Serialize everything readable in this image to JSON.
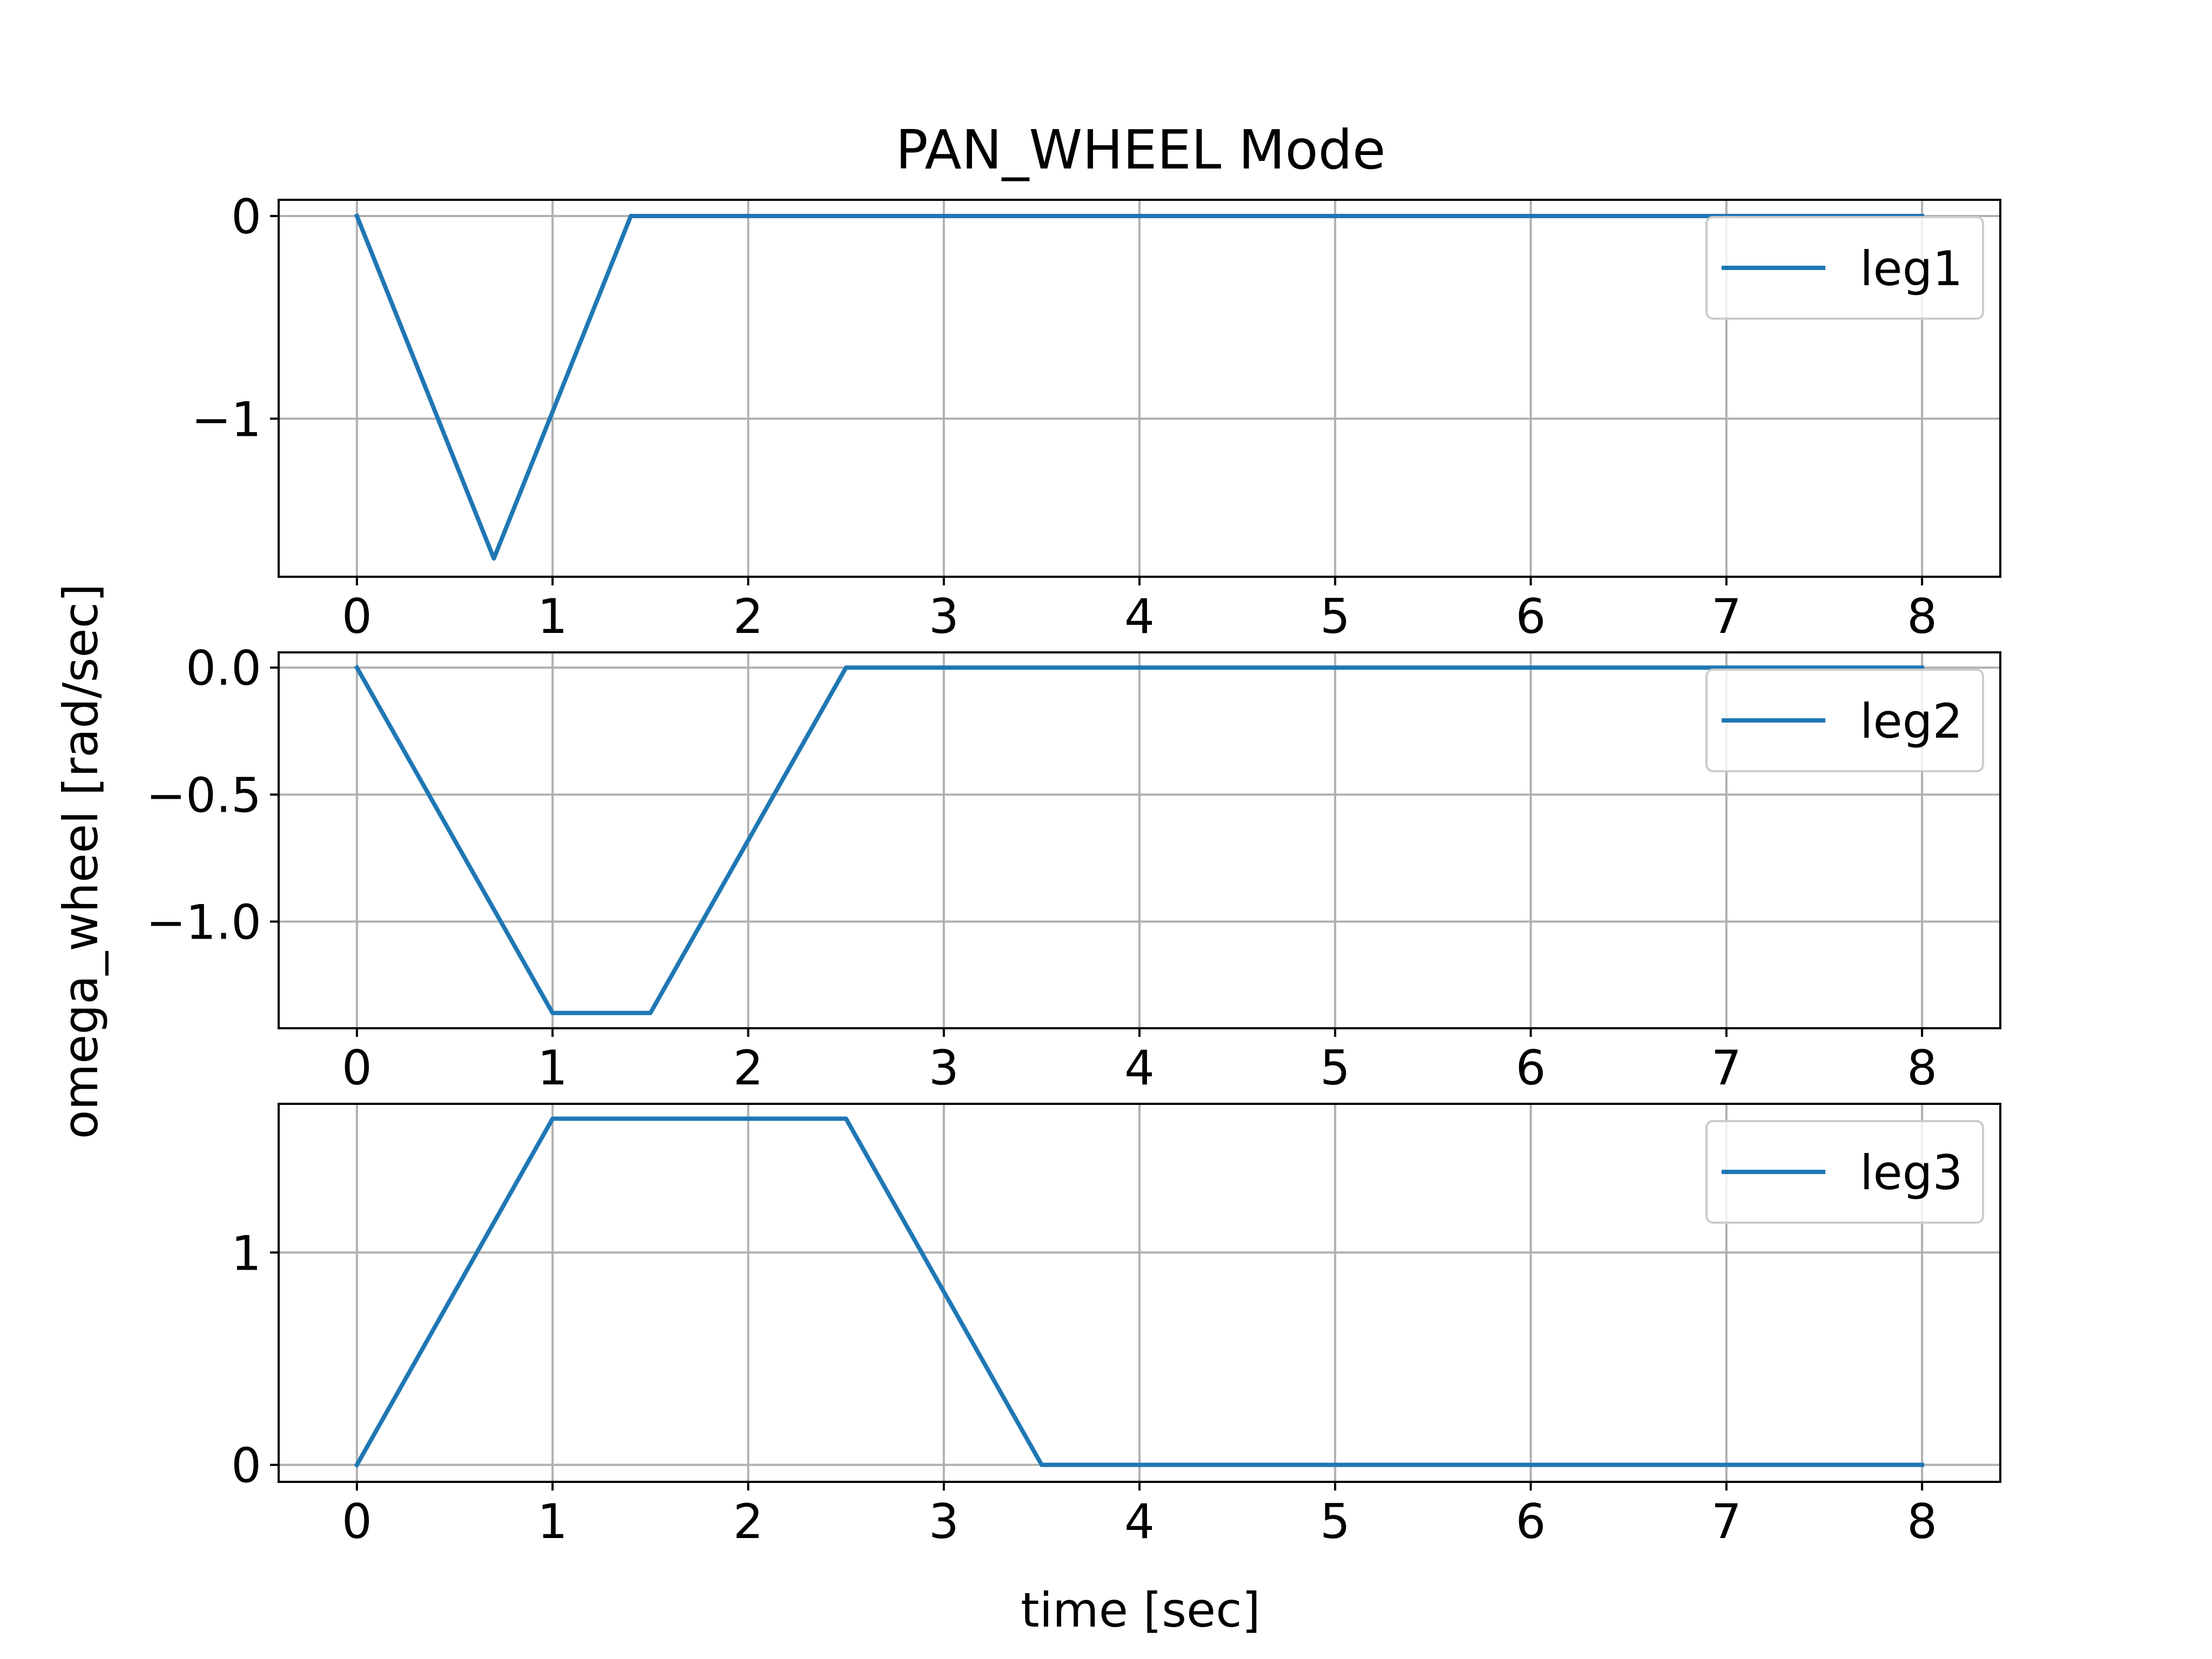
{
  "chart_data": {
    "title": "PAN_WHEEL Mode",
    "ylabel": "omega_wheel [rad/sec]",
    "xlabel": "time [sec]",
    "grid": true,
    "legend_position": "top-right",
    "line_color": "#1f77b4",
    "subplots": [
      {
        "type": "line",
        "xlim": [
          -0.4,
          8.4
        ],
        "ylim": [
          -1.78,
          0.08
        ],
        "x_ticks": [
          0,
          1,
          2,
          3,
          4,
          5,
          6,
          7,
          8
        ],
        "x_tick_labels": [
          "0",
          "1",
          "2",
          "3",
          "4",
          "5",
          "6",
          "7",
          "8"
        ],
        "y_ticks": [
          0,
          -1
        ],
        "y_tick_labels": [
          "0",
          "−1"
        ],
        "series": [
          {
            "name": "leg1",
            "x": [
              0,
              0.7,
              1.4,
              8
            ],
            "y": [
              0,
              -1.69,
              0,
              0
            ]
          }
        ]
      },
      {
        "type": "line",
        "xlim": [
          -0.4,
          8.4
        ],
        "ylim": [
          -1.42,
          0.06
        ],
        "x_ticks": [
          0,
          1,
          2,
          3,
          4,
          5,
          6,
          7,
          8
        ],
        "x_tick_labels": [
          "0",
          "1",
          "2",
          "3",
          "4",
          "5",
          "6",
          "7",
          "8"
        ],
        "y_ticks": [
          0,
          -0.5,
          -1
        ],
        "y_tick_labels": [
          "0.0",
          "−0.5",
          "−1.0"
        ],
        "series": [
          {
            "name": "leg2",
            "x": [
              0,
              1,
              1.5,
              2.5,
              8
            ],
            "y": [
              0,
              -1.36,
              -1.36,
              0,
              0
            ]
          }
        ]
      },
      {
        "type": "line",
        "xlim": [
          -0.4,
          8.4
        ],
        "ylim": [
          -0.08,
          1.7
        ],
        "x_ticks": [
          0,
          1,
          2,
          3,
          4,
          5,
          6,
          7,
          8
        ],
        "x_tick_labels": [
          "0",
          "1",
          "2",
          "3",
          "4",
          "5",
          "6",
          "7",
          "8"
        ],
        "y_ticks": [
          0,
          1
        ],
        "y_tick_labels": [
          "0",
          "1"
        ],
        "series": [
          {
            "name": "leg3",
            "x": [
              0,
              1,
              2.5,
              3.5,
              8
            ],
            "y": [
              0,
              1.63,
              1.63,
              0,
              0
            ]
          }
        ]
      }
    ]
  }
}
